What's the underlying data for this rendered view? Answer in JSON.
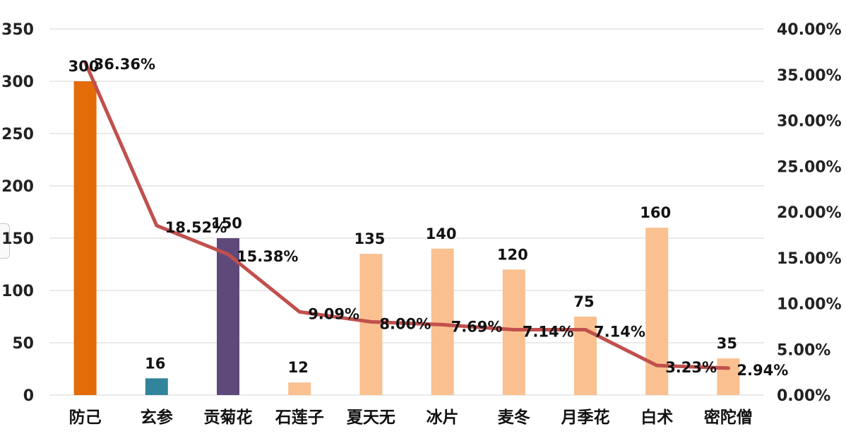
{
  "chart_data": {
    "type": "bar",
    "categories": [
      "防己",
      "玄参",
      "贡菊花",
      "石莲子",
      "夏天无",
      "冰片",
      "麦冬",
      "月季花",
      "白术",
      "密陀僧"
    ],
    "series": [
      {
        "chart_type": "bar",
        "axis": "left",
        "values": [
          300,
          16,
          150,
          12,
          135,
          140,
          120,
          75,
          160,
          35
        ],
        "labels": [
          "300",
          "16",
          "150",
          "12",
          "135",
          "140",
          "120",
          "75",
          "160",
          "35"
        ],
        "colors": [
          "#e36c09",
          "#31849b",
          "#5f497a",
          "#fac090",
          "#fac090",
          "#fac090",
          "#fac090",
          "#fac090",
          "#fac090",
          "#fac090"
        ]
      },
      {
        "chart_type": "line",
        "axis": "right",
        "values": [
          36.36,
          18.52,
          15.38,
          9.09,
          8.0,
          7.69,
          7.14,
          7.14,
          3.23,
          2.94
        ],
        "labels": [
          "36.36%",
          "18.52%",
          "15.38%",
          "9.09%",
          "8.00%",
          "7.69%",
          "7.14%",
          "7.14%",
          "3.23%",
          "2.94%"
        ],
        "color": "#c0504d"
      }
    ],
    "y_left": {
      "range": [
        0,
        350
      ],
      "ticks": [
        0,
        50,
        100,
        150,
        200,
        250,
        300,
        350
      ],
      "tick_labels": [
        "0",
        "50",
        "100",
        "150",
        "200",
        "250",
        "300",
        "350"
      ]
    },
    "y_right": {
      "range": [
        0,
        40
      ],
      "ticks": [
        0,
        5,
        10,
        15,
        20,
        25,
        30,
        35,
        40
      ],
      "tick_labels": [
        "0.00%",
        "5.00%",
        "10.00%",
        "15.00%",
        "20.00%",
        "25.00%",
        "30.00%",
        "35.00%",
        "40.00%"
      ]
    },
    "grid": true,
    "legend": "none"
  }
}
